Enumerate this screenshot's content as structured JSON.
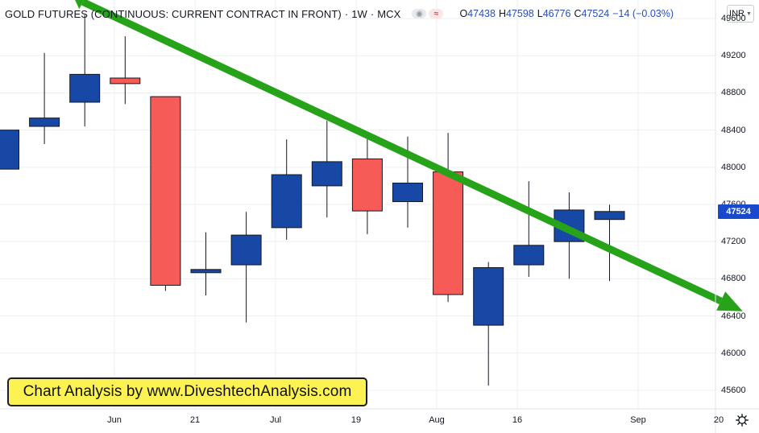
{
  "header": {
    "title": "GOLD FUTURES (CONTINUOUS: CURRENT CONTRACT IN FRONT)",
    "interval": "1W",
    "exchange": "MCX",
    "sep": "·",
    "eye_icon": "eye-icon",
    "pin_icon": "pin-icon",
    "ohlc": {
      "o_label": "O",
      "o_value": "47438",
      "h_label": "H",
      "h_value": "47598",
      "l_label": "L",
      "l_value": "46776",
      "c_label": "C",
      "c_value": "47524",
      "change": "−14 (−0.03%)"
    }
  },
  "currency": {
    "label": "INR",
    "icon": "caret-down-icon"
  },
  "watermark": {
    "text": "Chart Analysis by www.DiveshtechAnalysis.com"
  },
  "settings": {
    "icon": "gear-icon"
  },
  "colors": {
    "up": "#1848a5",
    "down": "#f75b58",
    "wick": "#131722",
    "grid": "#edeff3",
    "arrow": "#27a31a",
    "last_price": "#1848cc"
  },
  "chart_data": {
    "type": "candlestick",
    "interval": "1W",
    "ylim": [
      45400,
      49800
    ],
    "y_ticks": [
      45600,
      46000,
      46400,
      46800,
      47200,
      47600,
      48000,
      48400,
      48800,
      49200,
      49600
    ],
    "y_tick_labels": [
      "45600",
      "46000",
      "46400",
      "46800",
      "47200",
      "47600",
      "48000",
      "48400",
      "48800",
      "49200",
      "49600"
    ],
    "x_tick_labels": [
      "Jun",
      "21",
      "Jul",
      "19",
      "Aug",
      "16",
      "Sep",
      "20"
    ],
    "last_price": "47524",
    "candles": [
      {
        "o": 47980,
        "h": 48400,
        "l": 47980,
        "c": 48400
      },
      {
        "o": 48440,
        "h": 49230,
        "l": 48250,
        "c": 48530
      },
      {
        "o": 48700,
        "h": 49640,
        "l": 48440,
        "c": 49000
      },
      {
        "o": 48960,
        "h": 49410,
        "l": 48680,
        "c": 48900
      },
      {
        "o": 48760,
        "h": 48760,
        "l": 46670,
        "c": 46730
      },
      {
        "o": 46870,
        "h": 47300,
        "l": 46620,
        "c": 46900
      },
      {
        "o": 46950,
        "h": 47520,
        "l": 46330,
        "c": 47270
      },
      {
        "o": 47350,
        "h": 48300,
        "l": 47220,
        "c": 47920
      },
      {
        "o": 47800,
        "h": 48500,
        "l": 47460,
        "c": 48060
      },
      {
        "o": 48090,
        "h": 48310,
        "l": 47280,
        "c": 47530
      },
      {
        "o": 47630,
        "h": 48330,
        "l": 47350,
        "c": 47830
      },
      {
        "o": 47950,
        "h": 48370,
        "l": 46550,
        "c": 46630
      },
      {
        "o": 46300,
        "h": 46980,
        "l": 45650,
        "c": 46920
      },
      {
        "o": 46950,
        "h": 47850,
        "l": 46820,
        "c": 47160
      },
      {
        "o": 47200,
        "h": 47730,
        "l": 46800,
        "c": 47540
      },
      {
        "o": 47438,
        "h": 47598,
        "l": 46776,
        "c": 47524
      }
    ],
    "annotation": {
      "type": "trend-arrow",
      "from": {
        "candle": 1.95,
        "price": 49780
      },
      "to": {
        "candle": 18.3,
        "price": 46450
      }
    }
  }
}
